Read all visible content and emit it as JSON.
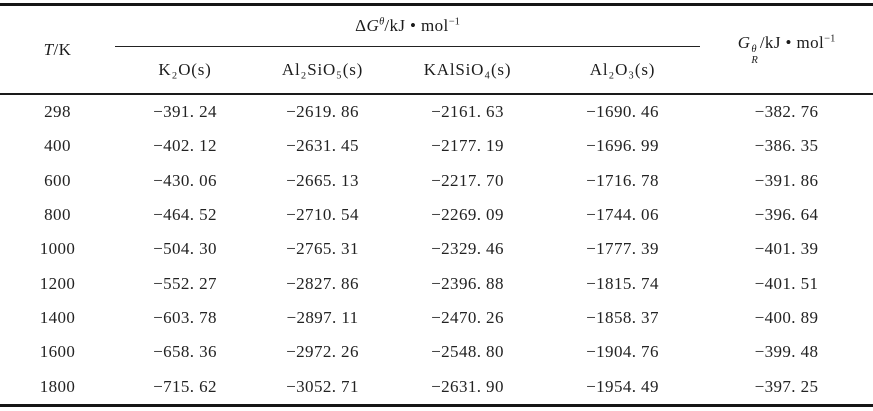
{
  "table": {
    "header": {
      "temperature": {
        "symbol": "T",
        "unit": "/K"
      },
      "delta_g": {
        "delta": "Δ",
        "base": "G",
        "sup": "θ",
        "unit": "/kJ • mol",
        "exp": "−1"
      },
      "species": [
        "K₂O(s)",
        "Al₂SiO₅(s)",
        "KAlSiO₄(s)",
        "Al₂O₃(s)"
      ],
      "g_reaction": {
        "base": "G",
        "sub": "R",
        "sup": "θ",
        "unit": "/kJ • mol",
        "exp": "−1"
      }
    },
    "rows": [
      [
        "298",
        "−391. 24",
        "−2619. 86",
        "−2161. 63",
        "−1690. 46",
        "−382. 76"
      ],
      [
        "400",
        "−402. 12",
        "−2631. 45",
        "−2177. 19",
        "−1696. 99",
        "−386. 35"
      ],
      [
        "600",
        "−430. 06",
        "−2665. 13",
        "−2217. 70",
        "−1716. 78",
        "−391. 86"
      ],
      [
        "800",
        "−464. 52",
        "−2710. 54",
        "−2269. 09",
        "−1744. 06",
        "−396. 64"
      ],
      [
        "1000",
        "−504. 30",
        "−2765. 31",
        "−2329. 46",
        "−1777. 39",
        "−401. 39"
      ],
      [
        "1200",
        "−552. 27",
        "−2827. 86",
        "−2396. 88",
        "−1815. 74",
        "−401. 51"
      ],
      [
        "1400",
        "−603. 78",
        "−2897. 11",
        "−2470. 26",
        "−1858. 37",
        "−400. 89"
      ],
      [
        "1600",
        "−658. 36",
        "−2972. 26",
        "−2548. 80",
        "−1904. 76",
        "−399. 48"
      ],
      [
        "1800",
        "−715. 62",
        "−3052. 71",
        "−2631. 90",
        "−1954. 49",
        "−397. 25"
      ]
    ]
  }
}
